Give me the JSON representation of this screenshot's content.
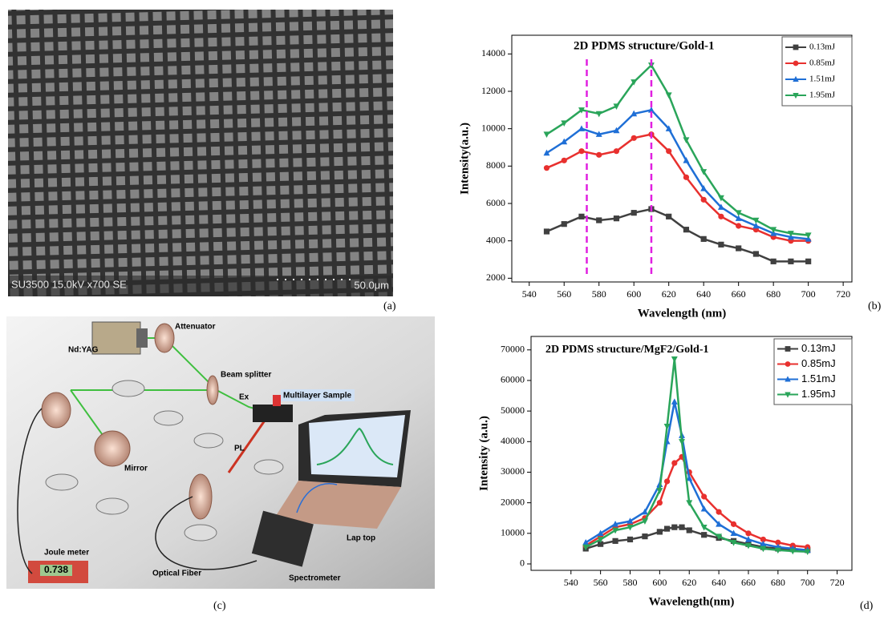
{
  "panels": {
    "a": {
      "label": "(a)",
      "caption": "SU3500 15.0kV x700 SE",
      "scale": "50.0μm"
    },
    "b": {
      "label": "(b)"
    },
    "c": {
      "label": "(c)"
    },
    "d": {
      "label": "(d)"
    }
  },
  "setup": {
    "labels": [
      "Nd:YAG",
      "Attenuator",
      "Beam splitter",
      "Ex",
      "Multilayer Sample",
      "Mirror",
      "PL",
      "Joule meter",
      "0.738",
      "Optical Fiber",
      "Spectrometer",
      "Lap top"
    ]
  },
  "chart_data": [
    {
      "type": "line",
      "title": "2D PDMS structure/Gold-1",
      "xlabel": "Wavelength (nm)",
      "ylabel": "Intensity(a.u.)",
      "x": [
        550,
        560,
        570,
        580,
        590,
        600,
        610,
        620,
        630,
        640,
        650,
        660,
        670,
        680,
        690,
        700
      ],
      "series": [
        {
          "name": "0.13mJ",
          "color": "#404040",
          "marker": "square",
          "values": [
            4500,
            4900,
            5300,
            5100,
            5200,
            5500,
            5700,
            5300,
            4600,
            4100,
            3800,
            3600,
            3300,
            2900,
            2900,
            2900
          ]
        },
        {
          "name": "0.85mJ",
          "color": "#e8302e",
          "marker": "circle",
          "values": [
            7900,
            8300,
            8800,
            8600,
            8800,
            9500,
            9700,
            8800,
            7400,
            6200,
            5300,
            4800,
            4600,
            4200,
            4000,
            4000
          ]
        },
        {
          "name": "1.51mJ",
          "color": "#1f6fd6",
          "marker": "triangle-up",
          "values": [
            8700,
            9300,
            10000,
            9700,
            9900,
            10800,
            11000,
            10000,
            8300,
            6800,
            5800,
            5200,
            4800,
            4400,
            4200,
            4100
          ]
        },
        {
          "name": "1.95mJ",
          "color": "#2aa55a",
          "marker": "triangle-down",
          "values": [
            9700,
            10300,
            11000,
            10800,
            11200,
            12500,
            13400,
            11800,
            9400,
            7700,
            6300,
            5500,
            5100,
            4600,
            4400,
            4300
          ]
        }
      ],
      "xlim": [
        530,
        725
      ],
      "ylim": [
        1800,
        15000
      ],
      "xticks": [
        540,
        560,
        580,
        600,
        620,
        640,
        660,
        680,
        700,
        720
      ],
      "yticks": [
        2000,
        4000,
        6000,
        8000,
        10000,
        12000,
        14000
      ],
      "vlines": [
        573,
        610
      ],
      "vline_color": "#e020e0",
      "grid": false,
      "legend": "upper right"
    },
    {
      "type": "line",
      "title": "2D PDMS structure/MgF2/Gold-1",
      "xlabel": "Wavelength(nm)",
      "ylabel": "Intensity (a.u.)",
      "x": [
        550,
        560,
        570,
        580,
        590,
        600,
        605,
        610,
        615,
        620,
        630,
        640,
        650,
        660,
        670,
        680,
        690,
        700
      ],
      "series": [
        {
          "name": "0.13mJ",
          "color": "#404040",
          "marker": "square",
          "values": [
            5000,
            6500,
            7500,
            8000,
            9000,
            10500,
            11500,
            12000,
            12000,
            11000,
            9500,
            8500,
            7500,
            6500,
            5500,
            5000,
            4800,
            4500
          ]
        },
        {
          "name": "0.85mJ",
          "color": "#e8302e",
          "marker": "circle",
          "values": [
            6000,
            9000,
            12000,
            13000,
            15000,
            20000,
            27000,
            33000,
            35000,
            30000,
            22000,
            17000,
            13000,
            10000,
            8000,
            7000,
            6000,
            5500
          ]
        },
        {
          "name": "1.51mJ",
          "color": "#1f6fd6",
          "marker": "triangle-up",
          "values": [
            7000,
            10000,
            13000,
            14000,
            17000,
            26000,
            40000,
            53000,
            42000,
            28000,
            18000,
            13000,
            10000,
            8000,
            6500,
            5500,
            5000,
            4500
          ]
        },
        {
          "name": "1.95mJ",
          "color": "#2aa55a",
          "marker": "triangle-down",
          "values": [
            5500,
            8000,
            11000,
            12000,
            14000,
            24000,
            45000,
            67000,
            40000,
            20000,
            12000,
            9000,
            7000,
            6000,
            5000,
            4500,
            4200,
            4000
          ]
        }
      ],
      "xlim": [
        513,
        730
      ],
      "ylim": [
        -2100,
        74400
      ],
      "xticks": [
        540,
        560,
        580,
        600,
        620,
        640,
        660,
        680,
        700,
        720
      ],
      "yticks": [
        0,
        10000,
        20000,
        30000,
        40000,
        50000,
        60000,
        70000
      ],
      "grid": false,
      "legend": "upper right"
    }
  ]
}
